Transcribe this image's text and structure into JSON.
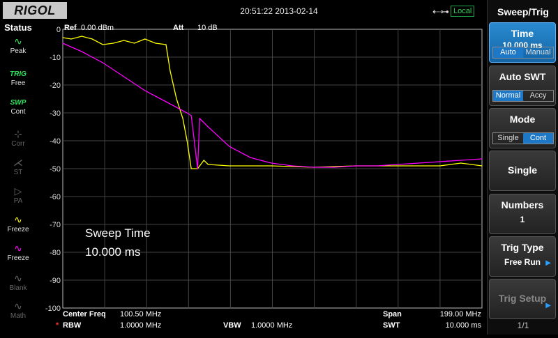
{
  "header": {
    "brand": "RIGOL",
    "datetime": "20:51:22 2013-02-14",
    "usb_icon": "usb-icon",
    "remote_state": "Local"
  },
  "status_panel": {
    "title": "Status",
    "items": [
      {
        "icon": "peak-icon",
        "label": "Peak",
        "enabled": true
      },
      {
        "icon": "trig-text-icon",
        "top": "TRIG",
        "label": "Free",
        "enabled": true
      },
      {
        "icon": "swp-text-icon",
        "top": "SWP",
        "label": "Cont",
        "enabled": true
      },
      {
        "icon": "corr-icon",
        "label": "Corr",
        "enabled": false
      },
      {
        "icon": "st-icon",
        "label": "ST",
        "enabled": false
      },
      {
        "icon": "pa-icon",
        "label": "PA",
        "enabled": false
      },
      {
        "icon": "trace-yellow-icon",
        "label": "Freeze",
        "enabled": true,
        "color": "#ffff00"
      },
      {
        "icon": "trace-magenta-icon",
        "label": "Freeze",
        "enabled": true,
        "color": "#ff00ff"
      },
      {
        "icon": "blank-icon",
        "label": "Blank",
        "enabled": false
      },
      {
        "icon": "math-icon",
        "label": "Math",
        "enabled": false
      }
    ]
  },
  "display": {
    "ref_label": "Ref",
    "ref_value": "0.00 dBm",
    "att_label": "Att",
    "att_value": "10 dB",
    "y_ticks": [
      "0",
      "-10",
      "-20",
      "-30",
      "-40",
      "-50",
      "-60",
      "-70",
      "-80",
      "-90",
      "-100"
    ],
    "annotation_line1": "Sweep Time",
    "annotation_line2": "10.000 ms",
    "bottom": {
      "center_freq_label": "Center Freq",
      "center_freq_value": "100.50 MHz",
      "span_label": "Span",
      "span_value": "199.00 MHz",
      "rbw_marker": "*",
      "rbw_label": "RBW",
      "rbw_value": "1.0000 MHz",
      "vbw_label": "VBW",
      "vbw_value": "1.0000 MHz",
      "swt_label": "SWT",
      "swt_value": "10.000 ms"
    }
  },
  "chart_data": {
    "type": "line",
    "ylim": [
      -100,
      0
    ],
    "xlim": [
      1.0,
      200.0
    ],
    "grid": true,
    "series": [
      {
        "color": "#ffff00",
        "x": [
          1.0,
          5.0,
          10.0,
          15.0,
          20.0,
          25.0,
          30.0,
          35.0,
          40.0,
          45.0,
          50.0,
          52.0,
          55.0,
          58.0,
          60.0,
          62.0,
          65.0,
          68.0,
          70.0,
          80.0,
          100.0,
          120.0,
          140.0,
          160.0,
          180.0,
          190.0,
          200.0
        ],
        "y": [
          -3,
          -3.5,
          -2.5,
          -3.5,
          -5.5,
          -5,
          -4,
          -5,
          -3.5,
          -5,
          -5.5,
          -15,
          -25,
          -32,
          -40,
          -50,
          -50,
          -47,
          -48.5,
          -49,
          -49,
          -49.5,
          -49,
          -49,
          -49,
          -48,
          -49
        ]
      },
      {
        "color": "#ff00ff",
        "x": [
          1.0,
          10.0,
          20.0,
          30.0,
          40.0,
          50.0,
          60.0,
          62.0,
          65.0,
          66.0,
          70.0,
          80.0,
          90.0,
          100.0,
          110.0,
          120.0,
          130.0,
          140.0,
          150.0,
          160.0,
          170.0,
          180.0,
          190.0,
          200.0
        ],
        "y": [
          -5,
          -8,
          -12,
          -17,
          -22,
          -26,
          -30,
          -31,
          -50,
          -32,
          -35,
          -42,
          -46,
          -48,
          -49,
          -49.5,
          -49.5,
          -49,
          -49,
          -48.5,
          -48,
          -47.5,
          -47,
          -46.5
        ]
      }
    ]
  },
  "right_panel": {
    "title": "Sweep/Trig",
    "keys": [
      {
        "label": "Time",
        "value": "10.000 ms",
        "toggle": [
          "Auto",
          "Manual"
        ],
        "toggle_on": 0,
        "active": true
      },
      {
        "label": "Auto SWT",
        "toggle": [
          "Normal",
          "Accy"
        ],
        "toggle_on": 0
      },
      {
        "label": "Mode",
        "toggle": [
          "Single",
          "Cont"
        ],
        "toggle_on": 1
      },
      {
        "label": "Single"
      },
      {
        "label": "Numbers",
        "value": "1"
      },
      {
        "label": "Trig Type",
        "value": "Free Run",
        "arrow": true
      },
      {
        "label": "Trig Setup",
        "arrow": true,
        "disabled": true
      }
    ],
    "page": "1/1"
  }
}
